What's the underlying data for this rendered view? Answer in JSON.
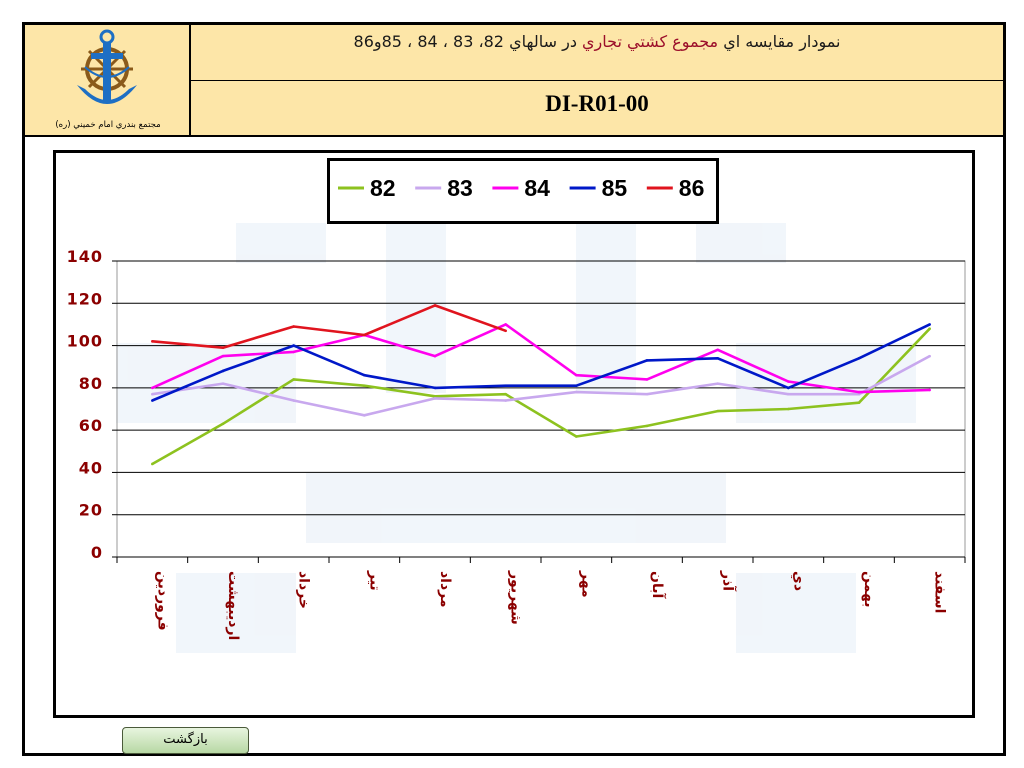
{
  "header": {
    "logo_caption": "مجتمع بندري امام خميني (ره)",
    "title_part1": "نمودار مقايسه اي ",
    "title_accent": "مجموع كشتي تجاري",
    "title_part2": "  در سالهاي 82، 83 ، 84 ، 85و86",
    "code": "DI-R01-00"
  },
  "back_button": {
    "label": "بازگشت"
  },
  "colors": {
    "header_bg": "#fde6a8",
    "axis_text": "#8b0000",
    "s82": "#8dc21f",
    "s83": "#c8a8ee",
    "s84": "#ff00ee",
    "s85": "#0018c8",
    "s86": "#e0141e"
  },
  "chart_data": {
    "type": "line",
    "title": "",
    "xlabel": "",
    "ylabel": "",
    "ylim": [
      0,
      140
    ],
    "yticks": [
      0,
      20,
      40,
      60,
      80,
      100,
      120,
      140
    ],
    "grid": true,
    "legend_position": "top-center",
    "categories": [
      "فروردين",
      "ارديبهشت",
      "خرداد",
      "تير",
      "مرداد",
      "شهريور",
      "مهر",
      "آبان",
      "آذر",
      "دي",
      "بهمن",
      "اسفند"
    ],
    "series": [
      {
        "name": "82",
        "color": "#8dc21f",
        "values": [
          44,
          63,
          84,
          81,
          76,
          77,
          57,
          62,
          69,
          70,
          73,
          108
        ]
      },
      {
        "name": "83",
        "color": "#c8a8ee",
        "values": [
          77,
          82,
          74,
          67,
          75,
          74,
          78,
          77,
          82,
          77,
          77,
          95
        ]
      },
      {
        "name": "84",
        "color": "#ff00ee",
        "values": [
          80,
          95,
          97,
          105,
          95,
          110,
          86,
          84,
          98,
          83,
          78,
          79
        ]
      },
      {
        "name": "85",
        "color": "#0018c8",
        "values": [
          74,
          88,
          100,
          86,
          80,
          81,
          81,
          93,
          94,
          80,
          94,
          110
        ]
      },
      {
        "name": "86",
        "color": "#e0141e",
        "values": [
          102,
          99,
          109,
          105,
          119,
          107,
          null,
          null,
          null,
          null,
          null,
          null
        ]
      }
    ]
  }
}
